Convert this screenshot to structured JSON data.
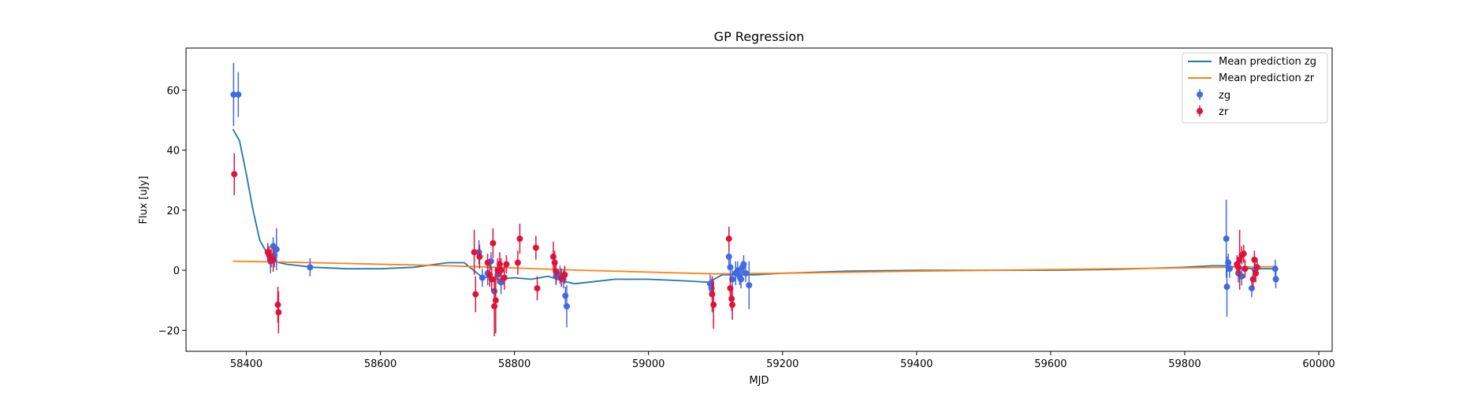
{
  "chart_data": {
    "type": "scatter",
    "title": "GP Regression",
    "xlabel": "MJD",
    "ylabel": "Flux [uJy]",
    "xlim": [
      58310,
      60020
    ],
    "ylim": [
      -27,
      74
    ],
    "xticks": [
      58400,
      58600,
      58800,
      59000,
      59200,
      59400,
      59600,
      59800,
      60000
    ],
    "yticks": [
      -20,
      0,
      20,
      40,
      60
    ],
    "grid": false,
    "legend_position": "top-right",
    "series": [
      {
        "name": "Mean prediction zg",
        "kind": "line",
        "color": "#1f77b4",
        "x": [
          58380,
          58390,
          58400,
          58410,
          58420,
          58430,
          58440,
          58460,
          58480,
          58500,
          58550,
          58600,
          58650,
          58700,
          58725,
          58750,
          58775,
          58800,
          58825,
          58850,
          58870,
          58890,
          58950,
          59000,
          59050,
          59090,
          59110,
          59130,
          59160,
          59200,
          59300,
          59400,
          59500,
          59600,
          59700,
          59800,
          59840,
          59860,
          59880,
          59900,
          59935
        ],
        "values": [
          47,
          43,
          32,
          20,
          10,
          6,
          3,
          2,
          1.5,
          1,
          0.5,
          0.5,
          1,
          2.5,
          2.5,
          -2,
          -3,
          -2.5,
          -3,
          -2,
          -3.5,
          -4.5,
          -3,
          -3,
          -3.5,
          -4,
          -1.5,
          -1.5,
          -1.5,
          -1,
          -0.3,
          0,
          0,
          0,
          0.3,
          1,
          1.5,
          1.5,
          1,
          0.5,
          0.5
        ]
      },
      {
        "name": "Mean prediction zr",
        "kind": "line",
        "color": "#ff7f0e",
        "x": [
          58380,
          58500,
          58700,
          58900,
          59100,
          59200,
          59400,
          59600,
          59800,
          59935
        ],
        "values": [
          3,
          2.5,
          1.5,
          0,
          -1.2,
          -1,
          -0.3,
          0.2,
          0.8,
          1.2
        ]
      },
      {
        "name": "zg",
        "kind": "errorbar",
        "color": "#4169e1",
        "points": [
          {
            "x": 58381,
            "y": 58.5,
            "err": 10.5
          },
          {
            "x": 58388,
            "y": 58.5,
            "err": 7.5
          },
          {
            "x": 58436,
            "y": 3,
            "err": 4
          },
          {
            "x": 58440,
            "y": 8,
            "err": 3
          },
          {
            "x": 58442,
            "y": 5,
            "err": 4
          },
          {
            "x": 58445,
            "y": 7,
            "err": 7
          },
          {
            "x": 58495,
            "y": 1,
            "err": 3
          },
          {
            "x": 58747,
            "y": 6,
            "err": 4
          },
          {
            "x": 58752,
            "y": -2.5,
            "err": 3
          },
          {
            "x": 58760,
            "y": -1,
            "err": 4
          },
          {
            "x": 58765,
            "y": 3,
            "err": 3
          },
          {
            "x": 58770,
            "y": -7,
            "err": 4
          },
          {
            "x": 58775,
            "y": -1.5,
            "err": 3
          },
          {
            "x": 58780,
            "y": -4,
            "err": 4
          },
          {
            "x": 58862,
            "y": -2,
            "err": 3
          },
          {
            "x": 58868,
            "y": -1.5,
            "err": 3
          },
          {
            "x": 58873,
            "y": -3,
            "err": 3
          },
          {
            "x": 58876,
            "y": -8.5,
            "err": 3
          },
          {
            "x": 58878,
            "y": -12,
            "err": 7
          },
          {
            "x": 59092,
            "y": -4.5,
            "err": 3
          },
          {
            "x": 59094,
            "y": -6,
            "err": 3
          },
          {
            "x": 59120,
            "y": 4.5,
            "err": 3
          },
          {
            "x": 59122,
            "y": 1,
            "err": 3
          },
          {
            "x": 59125,
            "y": -3,
            "err": 3
          },
          {
            "x": 59130,
            "y": -1,
            "err": 4
          },
          {
            "x": 59133,
            "y": 0,
            "err": 3
          },
          {
            "x": 59136,
            "y": -2,
            "err": 3
          },
          {
            "x": 59138,
            "y": -3,
            "err": 3
          },
          {
            "x": 59140,
            "y": 1,
            "err": 2
          },
          {
            "x": 59142,
            "y": 2,
            "err": 3
          },
          {
            "x": 59145,
            "y": -1,
            "err": 3
          },
          {
            "x": 59150,
            "y": -5,
            "err": 8
          },
          {
            "x": 59862,
            "y": 10.5,
            "err": 13
          },
          {
            "x": 59863,
            "y": -5.5,
            "err": 10
          },
          {
            "x": 59865,
            "y": 2.5,
            "err": 3
          },
          {
            "x": 59867,
            "y": 0.5,
            "err": 3
          },
          {
            "x": 59880,
            "y": -1,
            "err": 3
          },
          {
            "x": 59885,
            "y": -2,
            "err": 3
          },
          {
            "x": 59900,
            "y": -6,
            "err": 3
          },
          {
            "x": 59905,
            "y": 0,
            "err": 3
          },
          {
            "x": 59935,
            "y": 0.5,
            "err": 3
          },
          {
            "x": 59936,
            "y": -3,
            "err": 3
          }
        ]
      },
      {
        "name": "zr",
        "kind": "errorbar",
        "color": "#dc143c",
        "points": [
          {
            "x": 58382,
            "y": 32,
            "err": 7
          },
          {
            "x": 58432,
            "y": 6,
            "err": 3
          },
          {
            "x": 58434,
            "y": 5,
            "err": 3
          },
          {
            "x": 58437,
            "y": 4,
            "err": 3
          },
          {
            "x": 58440,
            "y": 3.5,
            "err": 4
          },
          {
            "x": 58447,
            "y": -11.5,
            "err": 6
          },
          {
            "x": 58448,
            "y": -14,
            "err": 7
          },
          {
            "x": 58740,
            "y": 6,
            "err": 7.5
          },
          {
            "x": 58742,
            "y": -8,
            "err": 6
          },
          {
            "x": 58748,
            "y": 4.5,
            "err": 4
          },
          {
            "x": 58760,
            "y": 2.5,
            "err": 3
          },
          {
            "x": 58763,
            "y": -1.5,
            "err": 4
          },
          {
            "x": 58766,
            "y": -3,
            "err": 4
          },
          {
            "x": 58768,
            "y": 9,
            "err": 5
          },
          {
            "x": 58770,
            "y": -12,
            "err": 10
          },
          {
            "x": 58772,
            "y": -10,
            "err": 11
          },
          {
            "x": 58775,
            "y": 0,
            "err": 4
          },
          {
            "x": 58778,
            "y": 2,
            "err": 4
          },
          {
            "x": 58780,
            "y": 0,
            "err": 4
          },
          {
            "x": 58785,
            "y": -2.5,
            "err": 4
          },
          {
            "x": 58788,
            "y": 2,
            "err": 3
          },
          {
            "x": 58805,
            "y": 2.5,
            "err": 4
          },
          {
            "x": 58808,
            "y": 10.5,
            "err": 5
          },
          {
            "x": 58832,
            "y": 7.5,
            "err": 4
          },
          {
            "x": 58834,
            "y": -6,
            "err": 4
          },
          {
            "x": 58858,
            "y": 4.5,
            "err": 5
          },
          {
            "x": 58860,
            "y": 2.5,
            "err": 4
          },
          {
            "x": 58862,
            "y": -0.5,
            "err": 4
          },
          {
            "x": 58870,
            "y": -2.5,
            "err": 3
          },
          {
            "x": 58875,
            "y": -1.5,
            "err": 3
          },
          {
            "x": 59095,
            "y": -8,
            "err": 6
          },
          {
            "x": 59097,
            "y": -11.5,
            "err": 8
          },
          {
            "x": 59120,
            "y": 10.5,
            "err": 4
          },
          {
            "x": 59122,
            "y": -6,
            "err": 4
          },
          {
            "x": 59124,
            "y": -9.5,
            "err": 4
          },
          {
            "x": 59125,
            "y": -11.5,
            "err": 5
          },
          {
            "x": 59878,
            "y": 2,
            "err": 3
          },
          {
            "x": 59880,
            "y": 1,
            "err": 3
          },
          {
            "x": 59882,
            "y": 3.5,
            "err": 10
          },
          {
            "x": 59885,
            "y": 5,
            "err": 3
          },
          {
            "x": 59888,
            "y": 5.5,
            "err": 3
          },
          {
            "x": 59890,
            "y": 0.5,
            "err": 3
          },
          {
            "x": 59902,
            "y": -3,
            "err": 3
          },
          {
            "x": 59904,
            "y": 3.5,
            "err": 3
          },
          {
            "x": 59906,
            "y": -1,
            "err": 3
          },
          {
            "x": 59908,
            "y": 1,
            "err": 3
          }
        ]
      }
    ]
  }
}
